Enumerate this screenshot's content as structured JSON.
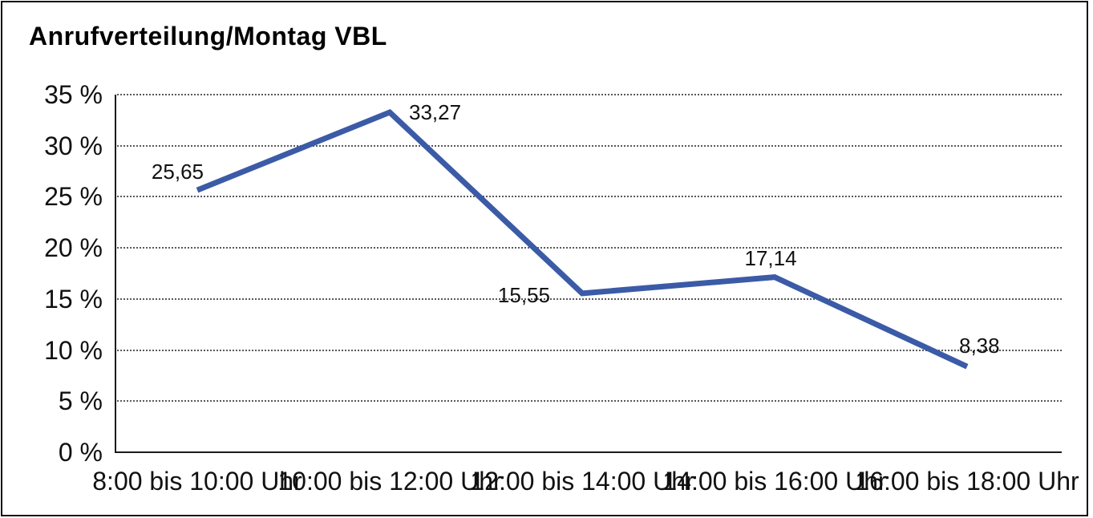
{
  "chart_data": {
    "type": "line",
    "title": "Anrufverteilung/Montag VBL",
    "categories": [
      "8:00 bis 10:00 Uhr",
      "10:00 bis 12:00 Uhr",
      "12:00 bis 14:00 Uhr",
      "14:00 bis 16:00 Uhr",
      "16:00 bis 18:00 Uhr"
    ],
    "series": [
      {
        "name": "Anrufverteilung Montag VBL",
        "values": [
          25.65,
          33.27,
          15.55,
          17.14,
          8.38
        ]
      }
    ],
    "value_labels": [
      "25,65",
      "33,27",
      "15,55",
      "17,14",
      "8,38"
    ],
    "value_label_anchors": [
      "above-left",
      "right",
      "left",
      "above",
      "above-right"
    ],
    "xlabel": "",
    "ylabel": "",
    "ylim": [
      0,
      35
    ],
    "yticks": [
      0,
      5,
      10,
      15,
      20,
      25,
      30,
      35
    ],
    "ytick_labels": [
      "0 %",
      "5 %",
      "10 %",
      "15 %",
      "20 %",
      "25 %",
      "30 %",
      "35 %"
    ],
    "grid": "horizontal-dotted",
    "legend": "none",
    "colors": {
      "line": "#3b5ba7",
      "grid": "#595959",
      "axis": "#1a1a1a",
      "text": "#111111",
      "frame_border": "#111111",
      "background": "#ffffff"
    }
  }
}
